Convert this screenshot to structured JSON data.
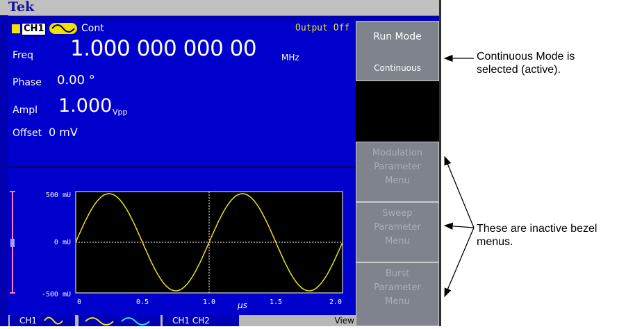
{
  "topbar": {
    "logo": "Tek"
  },
  "status": {
    "channel": "CH1",
    "mode": "Cont",
    "output_status": "Output Off"
  },
  "params": {
    "freq_label": "Freq",
    "freq_value": "1.000 000 000 00",
    "freq_unit": "MHz",
    "phase_label": "Phase",
    "phase_value": "0.00 °",
    "ampl_label": "Ampl",
    "ampl_value": "1.000",
    "ampl_unit": "Vpp",
    "offset_label": "Offset",
    "offset_value": "0 mV"
  },
  "plot": {
    "y_ticks": [
      "500 mU",
      "0 mU",
      "-500 mU"
    ],
    "x_ticks": [
      "0",
      "0.5",
      "1.0",
      "1.5",
      "2.0"
    ],
    "x_unit": "μs",
    "wave_color": "#f0e020"
  },
  "tabs": {
    "ch1": "CH1",
    "ch12": "CH1  CH2",
    "view": "View"
  },
  "bezel": {
    "run_mode_title": "Run Mode",
    "run_mode_value": "Continuous",
    "modulation": [
      "Modulation",
      "Parameter",
      "Menu"
    ],
    "sweep": [
      "Sweep",
      "Parameter",
      "Menu"
    ],
    "burst": [
      "Burst",
      "Parameter",
      "Menu"
    ]
  },
  "annotations": {
    "continuous": [
      "Continuous Mode is",
      "selected (active)."
    ],
    "inactive": [
      "These are inactive bezel",
      "menus."
    ]
  },
  "colors": {
    "screen_bg": "#0000cc",
    "bezel_bg": "#7e838c",
    "channel_yellow": "#f5e000"
  }
}
